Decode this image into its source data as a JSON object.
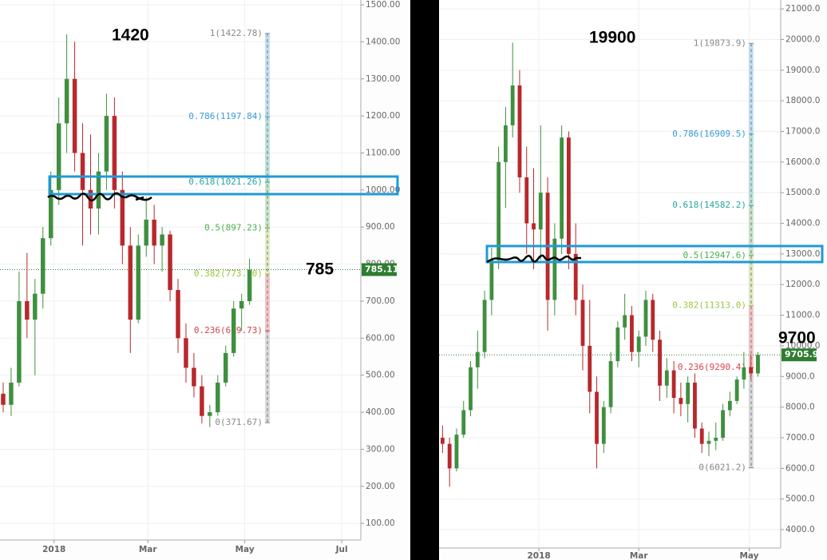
{
  "chart_data": [
    {
      "type": "candlestick",
      "up_color": "#3f8f3f",
      "down_color": "#b8282c",
      "grid": true,
      "xlim": [
        -34,
        193
      ],
      "ylim": [
        55,
        1513
      ],
      "xticks": [
        {
          "value": 0,
          "label": "2018"
        },
        {
          "value": 59,
          "label": "Mar"
        },
        {
          "value": 120,
          "label": "May"
        },
        {
          "value": 181,
          "label": "Jul"
        }
      ],
      "yticks": [
        {
          "value": 100,
          "label": "100.00"
        },
        {
          "value": 200,
          "label": "200.00"
        },
        {
          "value": 300,
          "label": "300.00"
        },
        {
          "value": 400,
          "label": "400.00"
        },
        {
          "value": 500,
          "label": "500.00"
        },
        {
          "value": 600,
          "label": "600.00"
        },
        {
          "value": 700,
          "label": "700.00"
        },
        {
          "value": 800,
          "label": "800.00"
        },
        {
          "value": 900,
          "label": "900.00"
        },
        {
          "value": 1000,
          "label": "1000.00"
        },
        {
          "value": 1100,
          "label": "1100.00"
        },
        {
          "value": 1200,
          "label": "1200.00"
        },
        {
          "value": 1300,
          "label": "1300.00"
        },
        {
          "value": 1400,
          "label": "1400.00"
        },
        {
          "value": 1500,
          "label": "1500.00"
        }
      ],
      "x": [
        -32,
        -27,
        -22,
        -17,
        -12,
        -7,
        -2,
        3,
        8,
        13,
        18,
        23,
        28,
        33,
        38,
        43,
        48,
        53,
        58,
        63,
        68,
        73,
        78,
        83,
        88,
        93,
        98,
        103,
        108,
        113,
        118,
        123
      ],
      "open": [
        450,
        420,
        480,
        700,
        650,
        720,
        870,
        1000,
        1180,
        1300,
        1100,
        1000,
        950,
        1050,
        1200,
        1000,
        850,
        650,
        850,
        920,
        850,
        880,
        730,
        600,
        520,
        470,
        390,
        400,
        480,
        560,
        680,
        700
      ],
      "high": [
        480,
        520,
        780,
        830,
        760,
        900,
        1050,
        1250,
        1420,
        1400,
        1180,
        1150,
        1100,
        1260,
        1250,
        1050,
        900,
        880,
        980,
        960,
        900,
        890,
        760,
        640,
        560,
        500,
        420,
        500,
        580,
        700,
        720,
        815
      ],
      "low": [
        400,
        390,
        470,
        600,
        500,
        680,
        850,
        960,
        1100,
        1050,
        850,
        880,
        880,
        1000,
        950,
        800,
        560,
        640,
        820,
        800,
        780,
        700,
        560,
        480,
        440,
        370,
        360,
        390,
        470,
        550,
        620,
        690
      ],
      "close": [
        420,
        480,
        700,
        650,
        720,
        870,
        1000,
        1180,
        1300,
        1100,
        1000,
        950,
        1050,
        1200,
        1000,
        850,
        650,
        850,
        920,
        850,
        880,
        730,
        600,
        520,
        470,
        390,
        400,
        480,
        560,
        680,
        700,
        785
      ],
      "fib_levels": [
        {
          "value": 1422.78,
          "label": "1(1422.78)",
          "color": "#888888"
        },
        {
          "value": 1197.84,
          "label": "0.786(1197.84)",
          "color": "#3a9ad9"
        },
        {
          "value": 1021.26,
          "label": "0.618(1021.26)",
          "color": "#26a69a"
        },
        {
          "value": 897.23,
          "label": "0.5(897.23)",
          "color": "#4caf50"
        },
        {
          "value": 773.2,
          "label": "0.382(773.20)",
          "color": "#9bc53d"
        },
        {
          "value": 619.73,
          "label": "0.236(619.73)",
          "color": "#d9434a"
        },
        {
          "value": 371.67,
          "label": "0(371.67)",
          "color": "#888888"
        }
      ],
      "last_price": 785.11,
      "last_price_color": "#2e7d32",
      "annotations": [
        "1420",
        "785"
      ]
    },
    {
      "type": "candlestick",
      "up_color": "#3f8f3f",
      "down_color": "#b8282c",
      "grid": true,
      "xlim": [
        -57,
        138
      ],
      "ylim": [
        3400,
        21290
      ],
      "xticks": [
        {
          "value": 0,
          "label": "2018"
        },
        {
          "value": 57,
          "label": "Mar"
        },
        {
          "value": 120,
          "label": "May"
        }
      ],
      "yticks": [
        {
          "value": 4000,
          "label": "4000.0"
        },
        {
          "value": 5000,
          "label": "5000.0"
        },
        {
          "value": 6000,
          "label": "6000.0"
        },
        {
          "value": 7000,
          "label": "7000.0"
        },
        {
          "value": 8000,
          "label": "8000.0"
        },
        {
          "value": 9000,
          "label": "9000.0"
        },
        {
          "value": 10000,
          "label": "10000.0"
        },
        {
          "value": 11000,
          "label": "11000.0"
        },
        {
          "value": 12000,
          "label": "12000.0"
        },
        {
          "value": 13000,
          "label": "13000.0"
        },
        {
          "value": 14000,
          "label": "14000.0"
        },
        {
          "value": 15000,
          "label": "15000.0"
        },
        {
          "value": 16000,
          "label": "16000.0"
        },
        {
          "value": 17000,
          "label": "17000.0"
        },
        {
          "value": 18000,
          "label": "18000.0"
        },
        {
          "value": 19000,
          "label": "19000.0"
        },
        {
          "value": 20000,
          "label": "20000.0"
        },
        {
          "value": 21000,
          "label": "21000.0"
        }
      ],
      "x": [
        -55,
        -51,
        -47,
        -43,
        -39,
        -35,
        -31,
        -27,
        -23,
        -19,
        -15,
        -11,
        -7,
        -3,
        1,
        5,
        9,
        13,
        17,
        21,
        25,
        29,
        33,
        37,
        41,
        45,
        49,
        53,
        57,
        61,
        65,
        69,
        73,
        77,
        81,
        85,
        89,
        93,
        97,
        101,
        105,
        109,
        113,
        117,
        121,
        125
      ],
      "open": [
        7000,
        6800,
        6000,
        7100,
        7900,
        9300,
        9800,
        11500,
        12800,
        16000,
        17200,
        18500,
        15500,
        14000,
        13800,
        15000,
        11500,
        13500,
        16800,
        13000,
        11500,
        10000,
        8500,
        6800,
        8000,
        9500,
        10600,
        11000,
        9800,
        10300,
        11500,
        10200,
        8700,
        9200,
        8300,
        8100,
        8800,
        7300,
        6800,
        6900,
        7000,
        7900,
        8200,
        8900,
        9300,
        9100
      ],
      "high": [
        7400,
        7000,
        7300,
        8200,
        9500,
        10500,
        11800,
        13200,
        16500,
        17800,
        19900,
        19000,
        16500,
        15800,
        17200,
        15500,
        14000,
        17200,
        17000,
        14000,
        12000,
        11500,
        9000,
        8200,
        9800,
        10800,
        11700,
        11300,
        10500,
        11800,
        11700,
        10500,
        9600,
        9500,
        8800,
        9000,
        9100,
        7500,
        7200,
        7500,
        8100,
        8500,
        9000,
        9800,
        9700,
        9800
      ],
      "low": [
        6500,
        5400,
        5900,
        7000,
        7700,
        8600,
        9600,
        11000,
        12500,
        14500,
        16800,
        15000,
        13000,
        12500,
        12800,
        10500,
        11000,
        13000,
        12500,
        11000,
        9200,
        7800,
        6000,
        6500,
        7800,
        9300,
        10200,
        9500,
        9300,
        10000,
        9800,
        8200,
        8300,
        7800,
        7700,
        7500,
        7000,
        6500,
        6400,
        6600,
        6900,
        7700,
        8100,
        8600,
        8900,
        9000
      ],
      "close": [
        6800,
        6000,
        7100,
        7900,
        9300,
        9800,
        11500,
        12800,
        16000,
        17200,
        18500,
        15500,
        14000,
        13800,
        15000,
        11500,
        13500,
        16800,
        13000,
        11500,
        10000,
        8500,
        6800,
        8000,
        9500,
        10600,
        11000,
        9800,
        10300,
        11500,
        10200,
        8700,
        9200,
        8300,
        8100,
        8800,
        7300,
        6800,
        6900,
        7000,
        7900,
        8200,
        8900,
        9300,
        9100,
        9706
      ],
      "fib_levels": [
        {
          "value": 19873.9,
          "label": "1(19873.9)",
          "color": "#888888"
        },
        {
          "value": 16909.5,
          "label": "0.786(16909.5)",
          "color": "#3a9ad9"
        },
        {
          "value": 14582.2,
          "label": "0.618(14582.2)",
          "color": "#26a69a"
        },
        {
          "value": 12947.6,
          "label": "0.5(12947.6)",
          "color": "#4caf50"
        },
        {
          "value": 11313.0,
          "label": "0.382(11313.0)",
          "color": "#9bc53d"
        },
        {
          "value": 9290.4,
          "label": "0.236(9290.4)",
          "color": "#d9434a"
        },
        {
          "value": 6021.2,
          "label": "0(6021.2)",
          "color": "#888888"
        }
      ],
      "last_price": 9705.9,
      "last_price_color": "#2e7d32",
      "annotations": [
        "19900",
        "9700"
      ]
    }
  ]
}
